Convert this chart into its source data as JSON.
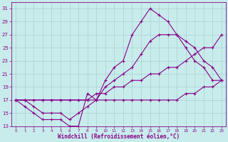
{
  "xlabel": "Windchill (Refroidissement éolien,°C)",
  "xlim_min": -0.5,
  "xlim_max": 23.5,
  "ylim_min": 13,
  "ylim_max": 32,
  "xticks": [
    0,
    1,
    2,
    3,
    4,
    5,
    6,
    7,
    8,
    9,
    10,
    11,
    12,
    13,
    14,
    15,
    16,
    17,
    18,
    19,
    20,
    21,
    22,
    23
  ],
  "yticks": [
    13,
    15,
    17,
    19,
    21,
    23,
    25,
    27,
    29,
    31
  ],
  "bg_color": "#c8ecec",
  "grid_color": "#a8d0d0",
  "line_color": "#880088",
  "lines": [
    {
      "x": [
        0,
        1,
        2,
        3,
        4,
        5,
        6,
        7,
        8,
        9,
        10,
        11,
        12,
        13,
        14,
        15,
        16,
        17,
        18,
        19,
        20,
        21,
        22,
        23
      ],
      "y": [
        17,
        16,
        15,
        14,
        14,
        14,
        13,
        13,
        18,
        17,
        20,
        22,
        23,
        27,
        29,
        31,
        30,
        29,
        27,
        25,
        23,
        22,
        20,
        20
      ]
    },
    {
      "x": [
        0,
        1,
        2,
        3,
        4,
        5,
        6,
        7,
        8,
        9,
        10,
        11,
        12,
        13,
        14,
        15,
        16,
        17,
        18,
        19,
        20,
        21,
        22,
        23
      ],
      "y": [
        17,
        17,
        16,
        15,
        15,
        15,
        14,
        15,
        16,
        17,
        19,
        20,
        21,
        22,
        24,
        26,
        27,
        27,
        27,
        26,
        25,
        23,
        22,
        20
      ]
    },
    {
      "x": [
        0,
        1,
        2,
        3,
        4,
        5,
        6,
        7,
        8,
        9,
        10,
        11,
        12,
        13,
        14,
        15,
        16,
        17,
        18,
        19,
        20,
        21,
        22,
        23
      ],
      "y": [
        17,
        17,
        17,
        17,
        17,
        17,
        17,
        17,
        17,
        18,
        18,
        19,
        19,
        20,
        20,
        21,
        21,
        22,
        22,
        23,
        24,
        25,
        25,
        27
      ]
    },
    {
      "x": [
        0,
        1,
        2,
        3,
        4,
        5,
        6,
        7,
        8,
        9,
        10,
        11,
        12,
        13,
        14,
        15,
        16,
        17,
        18,
        19,
        20,
        21,
        22,
        23
      ],
      "y": [
        17,
        17,
        17,
        17,
        17,
        17,
        17,
        17,
        17,
        17,
        17,
        17,
        17,
        17,
        17,
        17,
        17,
        17,
        17,
        18,
        18,
        19,
        19,
        20
      ]
    }
  ]
}
